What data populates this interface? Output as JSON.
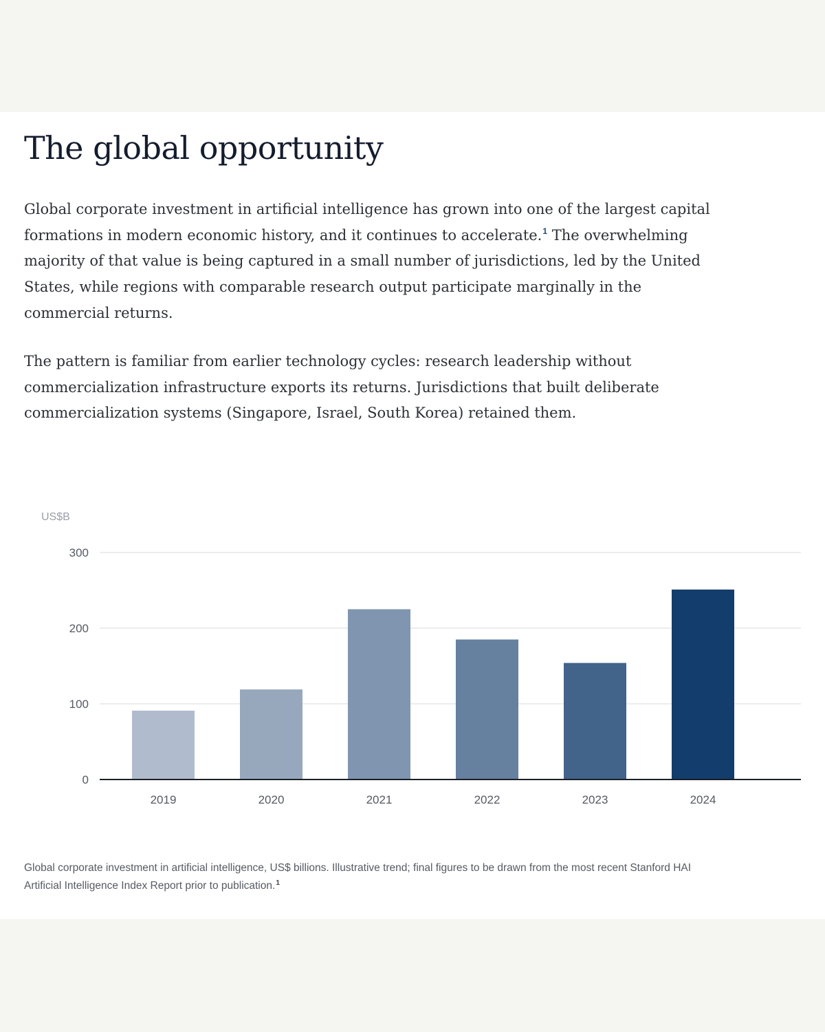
{
  "article": {
    "title": "The global opportunity",
    "paragraph1": "Global corporate investment in artificial intelligence has grown into one of the largest capital formations in modern economic history, and it continues to accelerate.",
    "paragraph1_footnote": "1",
    "paragraph1_rest": " The overwhelming majority of that value is being captured in a small number of jurisdictions, led by the United States, while regions with comparable research output participate marginally in the commercial returns.",
    "paragraph2": "The pattern is familiar from earlier technology cycles: research leadership without commercialization infrastructure exports its returns. Jurisdictions that built deliberate commercialization systems (Singapore, Israel, South Korea) retained them.",
    "caption": "Global corporate investment in artificial intelligence, US$ billions. Illustrative trend; final figures to be drawn from the most recent Stanford HAI Artificial Intelligence Index Report prior to publication.",
    "caption_footnote": "1"
  },
  "chart_data": {
    "type": "bar",
    "unit_label": "US$B",
    "categories": [
      "2019",
      "2020",
      "2021",
      "2022",
      "2023",
      "2024"
    ],
    "values": [
      91,
      119,
      225,
      185,
      154,
      251
    ],
    "ylim": [
      0,
      300
    ],
    "yticks": [
      0,
      100,
      200,
      300
    ],
    "grid": true,
    "bar_colors": [
      "#b0bccd",
      "#97a8bd",
      "#8095af",
      "#66809f",
      "#42638a",
      "#123d6c"
    ],
    "grid_color": "#e3e5e8",
    "axis_color": "#1b1f26"
  }
}
